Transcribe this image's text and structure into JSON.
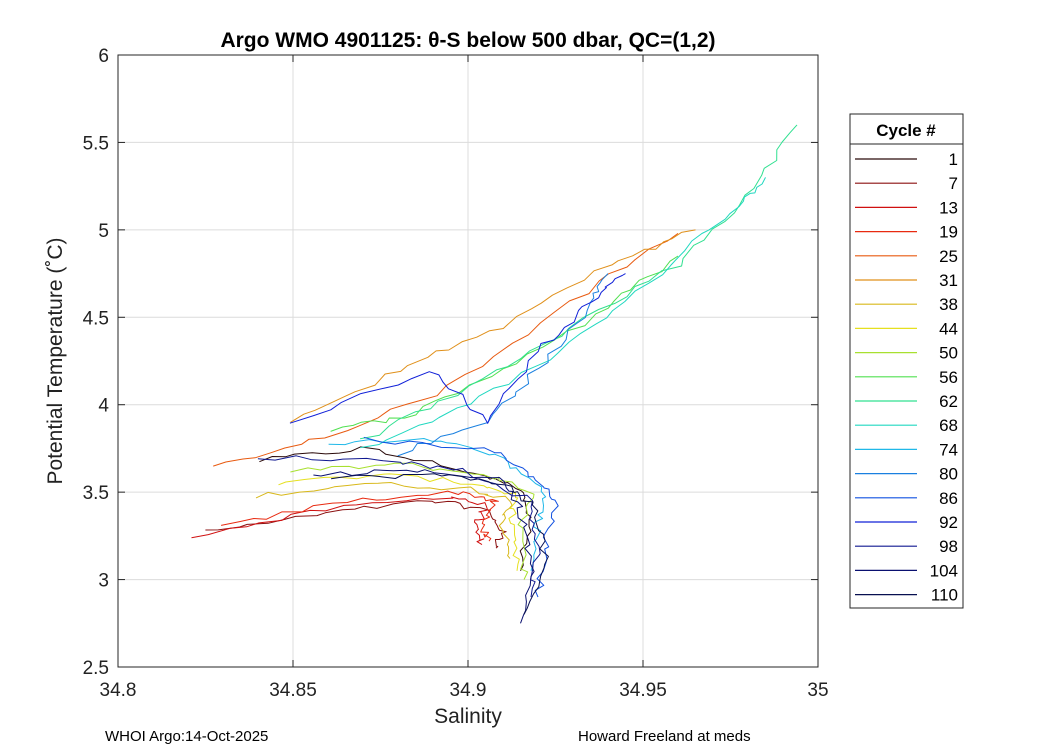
{
  "chart_data": {
    "type": "line",
    "title": "Argo WMO 4901125: θ-S below 500 dbar,  QC=(1,2)",
    "xlabel": "Salinity",
    "ylabel": "Potential Temperature (˚C)",
    "xlim": [
      34.8,
      35.0
    ],
    "ylim": [
      2.5,
      6.0
    ],
    "xticks": [
      "34.8",
      "34.85",
      "34.9",
      "34.95",
      "35"
    ],
    "xtick_values": [
      34.8,
      34.85,
      34.9,
      34.95,
      35.0
    ],
    "yticks": [
      "2.5",
      "3",
      "3.5",
      "4",
      "4.5",
      "5",
      "5.5",
      "6"
    ],
    "ytick_values": [
      2.5,
      3.0,
      3.5,
      4.0,
      4.5,
      5.0,
      5.5,
      6.0
    ],
    "grid": true,
    "legend": {
      "title": "Cycle #",
      "placement": "right-outside",
      "entries": [
        {
          "label": "1",
          "color": "#2a0a0a"
        },
        {
          "label": "7",
          "color": "#8b1010"
        },
        {
          "label": "13",
          "color": "#d01010"
        },
        {
          "label": "19",
          "color": "#e82a10"
        },
        {
          "label": "25",
          "color": "#e85a10"
        },
        {
          "label": "31",
          "color": "#e0901a"
        },
        {
          "label": "38",
          "color": "#d8b81a"
        },
        {
          "label": "44",
          "color": "#e6e020"
        },
        {
          "label": "50",
          "color": "#a8e030"
        },
        {
          "label": "56",
          "color": "#50e050"
        },
        {
          "label": "62",
          "color": "#30e090"
        },
        {
          "label": "68",
          "color": "#20d8c0"
        },
        {
          "label": "74",
          "color": "#20b8e8"
        },
        {
          "label": "80",
          "color": "#1a80e0"
        },
        {
          "label": "86",
          "color": "#1050e0"
        },
        {
          "label": "92",
          "color": "#1020d8"
        },
        {
          "label": "98",
          "color": "#101890"
        },
        {
          "label": "104",
          "color": "#0a1070"
        },
        {
          "label": "110",
          "color": "#081050"
        }
      ]
    },
    "series": [
      {
        "name": "1",
        "color": "#2a0a0a",
        "s": [
          34.84,
          34.87,
          34.9,
          34.915,
          34.918,
          34.915
        ],
        "t": [
          3.68,
          3.75,
          3.62,
          3.52,
          3.35,
          3.05
        ]
      },
      {
        "name": "7",
        "color": "#8b1010",
        "s": [
          34.825,
          34.86,
          34.89,
          34.905,
          34.91,
          34.908
        ],
        "t": [
          3.27,
          3.38,
          3.45,
          3.4,
          3.28,
          3.18
        ]
      },
      {
        "name": "13",
        "color": "#d01010",
        "s": [
          34.822,
          34.86,
          34.895,
          34.905,
          34.902,
          34.904
        ],
        "t": [
          3.25,
          3.4,
          3.48,
          3.42,
          3.3,
          3.2
        ]
      },
      {
        "name": "19",
        "color": "#e82a10",
        "s": [
          34.83,
          34.865,
          34.898,
          34.908,
          34.904,
          34.906
        ],
        "t": [
          3.3,
          3.45,
          3.5,
          3.45,
          3.32,
          3.22
        ]
      },
      {
        "name": "25",
        "color": "#e85a10",
        "s": [
          34.826,
          34.86,
          34.895,
          34.93,
          34.96
        ],
        "t": [
          3.64,
          3.82,
          4.1,
          4.6,
          4.98
        ]
      },
      {
        "name": "31",
        "color": "#e0901a",
        "s": [
          34.85,
          34.88,
          34.91,
          34.94,
          34.965
        ],
        "t": [
          3.9,
          4.2,
          4.45,
          4.8,
          5.0
        ]
      },
      {
        "name": "38",
        "color": "#d8b81a",
        "s": [
          34.84,
          34.87,
          34.9,
          34.912,
          34.91,
          34.912
        ],
        "t": [
          3.48,
          3.55,
          3.52,
          3.46,
          3.3,
          3.12
        ]
      },
      {
        "name": "44",
        "color": "#e6e020",
        "s": [
          34.845,
          34.875,
          34.902,
          34.914,
          34.912,
          34.914
        ],
        "t": [
          3.55,
          3.6,
          3.55,
          3.48,
          3.3,
          3.05
        ]
      },
      {
        "name": "50",
        "color": "#a8e030",
        "s": [
          34.85,
          34.88,
          34.905,
          34.918,
          34.915,
          34.916
        ],
        "t": [
          3.62,
          3.66,
          3.6,
          3.5,
          3.3,
          3.0
        ]
      },
      {
        "name": "56",
        "color": "#50e050",
        "s": [
          34.86,
          34.885,
          34.91,
          34.94,
          34.96
        ],
        "t": [
          3.85,
          3.95,
          4.2,
          4.55,
          4.85
        ]
      },
      {
        "name": "62",
        "color": "#30e090",
        "s": [
          34.87,
          34.9,
          34.93,
          34.96,
          34.98,
          34.994
        ],
        "t": [
          3.8,
          4.1,
          4.45,
          4.8,
          5.2,
          5.6
        ]
      },
      {
        "name": "68",
        "color": "#20d8c0",
        "s": [
          34.87,
          34.9,
          34.93,
          34.955,
          34.975,
          34.985
        ],
        "t": [
          3.75,
          4.0,
          4.35,
          4.75,
          5.1,
          5.3
        ]
      },
      {
        "name": "74",
        "color": "#20b8e8",
        "s": [
          34.86,
          34.89,
          34.91,
          34.922,
          34.92,
          34.918
        ],
        "t": [
          3.78,
          3.8,
          3.7,
          3.5,
          3.3,
          3.05
        ]
      },
      {
        "name": "80",
        "color": "#1a80e0",
        "s": [
          34.88,
          34.905,
          34.92,
          34.935,
          34.94
        ],
        "t": [
          3.72,
          3.9,
          4.2,
          4.55,
          4.75
        ]
      },
      {
        "name": "86",
        "color": "#1050e0",
        "s": [
          34.87,
          34.905,
          34.918,
          34.925,
          34.922,
          34.92
        ],
        "t": [
          3.8,
          3.75,
          3.6,
          3.45,
          3.2,
          2.9
        ]
      },
      {
        "name": "92",
        "color": "#1020d8",
        "s": [
          34.85,
          34.89,
          34.905,
          34.92,
          34.935,
          34.945
        ],
        "t": [
          3.9,
          4.2,
          3.9,
          4.3,
          4.6,
          4.75
        ]
      },
      {
        "name": "98",
        "color": "#101890",
        "s": [
          34.84,
          34.88,
          34.9,
          34.918,
          34.92,
          34.918
        ],
        "t": [
          3.7,
          3.68,
          3.62,
          3.45,
          3.2,
          2.9
        ]
      },
      {
        "name": "104",
        "color": "#0a1070",
        "s": [
          34.855,
          34.885,
          34.91,
          34.915,
          34.918,
          34.915
        ],
        "t": [
          3.6,
          3.62,
          3.58,
          3.4,
          3.1,
          2.75
        ]
      },
      {
        "name": "110",
        "color": "#081050",
        "s": [
          34.86,
          34.89,
          34.91,
          34.92,
          34.922,
          34.916
        ],
        "t": [
          3.58,
          3.6,
          3.55,
          3.4,
          3.1,
          2.8
        ]
      }
    ]
  },
  "footer": {
    "left": "WHOI Argo:14-Oct-2025",
    "right": "Howard Freeland at meds"
  }
}
